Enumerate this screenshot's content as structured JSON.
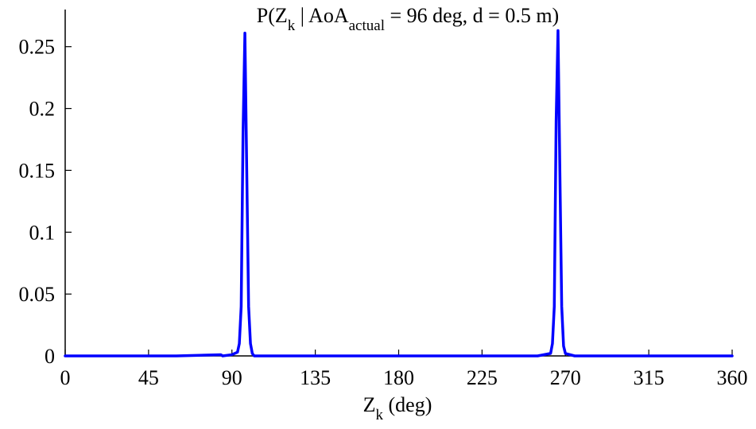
{
  "chart_data": {
    "type": "line",
    "title": {
      "prefix": "P(Z",
      "sub1": "k",
      "mid": " | AoA",
      "sub2": "actual",
      "suffix": " = 96 deg, d = 0.5 m)"
    },
    "xlabel": {
      "main": "Z",
      "sub": "k",
      "suffix": " (deg)"
    },
    "ylabel": "",
    "xlim": [
      0,
      360
    ],
    "ylim": [
      0,
      0.28
    ],
    "xticks": [
      0,
      45,
      90,
      135,
      180,
      225,
      270,
      315,
      360
    ],
    "xtick_labels": [
      "0",
      "45",
      "90",
      "135",
      "180",
      "225",
      "270",
      "315",
      "360"
    ],
    "yticks": [
      0,
      0.05,
      0.1,
      0.15,
      0.2,
      0.25
    ],
    "ytick_labels": [
      "0",
      "0.05",
      "0.1",
      "0.15",
      "0.2",
      "0.25"
    ],
    "grid": false,
    "series": [
      {
        "color": "#0000ff",
        "x": [
          0,
          60,
          84,
          85,
          90,
          93,
          94,
          95,
          96,
          97,
          98,
          99,
          100,
          101,
          102,
          105,
          150,
          200,
          255,
          262,
          263,
          264,
          265,
          266,
          267,
          268,
          269,
          270,
          275,
          300,
          360
        ],
        "y": [
          0,
          0,
          0.001,
          0,
          0.001,
          0.003,
          0.01,
          0.04,
          0.18,
          0.261,
          0.15,
          0.04,
          0.01,
          0.002,
          0,
          0,
          0,
          0,
          0,
          0.002,
          0.01,
          0.04,
          0.19,
          0.263,
          0.15,
          0.04,
          0.008,
          0.002,
          0,
          0,
          0
        ]
      }
    ]
  }
}
